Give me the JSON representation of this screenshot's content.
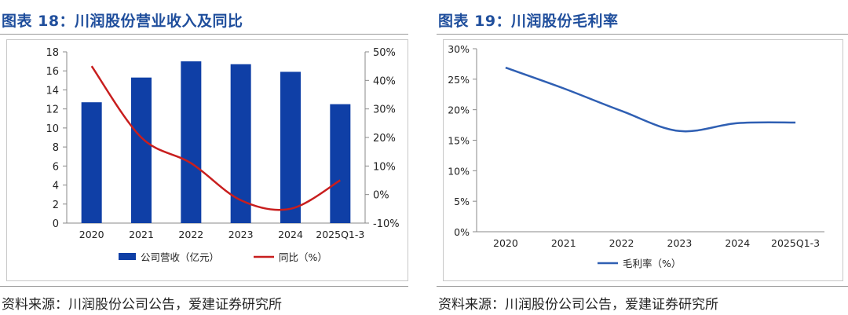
{
  "chart_data": [
    {
      "type": "bar+line",
      "title": "图表 18：川润股份营业收入及同比",
      "categories": [
        "2020",
        "2021",
        "2022",
        "2023",
        "2024",
        "2025Q1-3"
      ],
      "series": [
        {
          "name": "公司营收（亿元）",
          "kind": "bar",
          "axis": "left",
          "color": "#0f3fa6",
          "values": [
            12.7,
            15.3,
            17.0,
            16.7,
            15.9,
            12.5
          ]
        },
        {
          "name": "同比（%）",
          "kind": "line",
          "axis": "right",
          "color": "#c81e1e",
          "values": [
            45,
            20,
            11,
            -2,
            -5,
            5
          ]
        }
      ],
      "yleft": {
        "min": 0,
        "max": 18,
        "ticks": [
          "0",
          "2",
          "4",
          "6",
          "8",
          "10",
          "12",
          "14",
          "16",
          "18"
        ]
      },
      "yright": {
        "min": -10,
        "max": 50,
        "ticks": [
          "-10%",
          "0%",
          "10%",
          "20%",
          "30%",
          "40%",
          "50%"
        ]
      },
      "legend": [
        "公司营收（亿元）",
        "同比（%）"
      ],
      "legend_position": "bottom",
      "grid": false,
      "source": "资料来源：川润股份公司公告，爱建证券研究所"
    },
    {
      "type": "line",
      "title": "图表 19：川润股份毛利率",
      "categories": [
        "2020",
        "2021",
        "2022",
        "2023",
        "2024",
        "2025Q1-3"
      ],
      "series": [
        {
          "name": "毛利率（%）",
          "color": "#2f5fb3",
          "values": [
            26.9,
            23.5,
            19.8,
            16.5,
            17.8,
            17.9
          ]
        }
      ],
      "ylim": [
        0,
        30
      ],
      "yticks": [
        "0%",
        "5%",
        "10%",
        "15%",
        "20%",
        "25%",
        "30%"
      ],
      "legend": [
        "毛利率（%）"
      ],
      "legend_position": "bottom",
      "grid": false,
      "source": "资料来源：川润股份公司公告，爱建证券研究所"
    }
  ]
}
